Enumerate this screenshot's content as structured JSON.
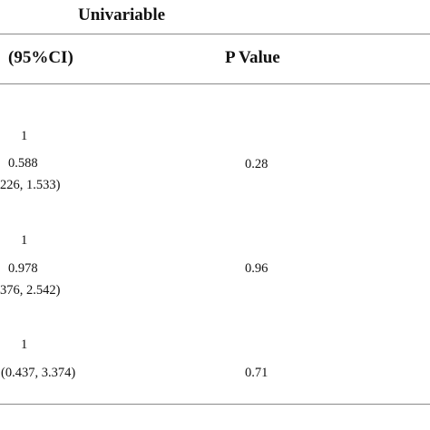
{
  "header": {
    "group": "Univariable",
    "col_ci": "(95%CI)",
    "col_p": "P Value"
  },
  "rows": [
    {
      "ref": "1",
      "or": "0.588",
      "ci": "226, 1.533)",
      "p": "0.28"
    },
    {
      "ref": "1",
      "or": "0.978",
      "ci": "376, 2.542)",
      "p": "0.96"
    },
    {
      "ref": "1",
      "ci": "(0.437, 3.374)",
      "p": "0.71"
    }
  ]
}
